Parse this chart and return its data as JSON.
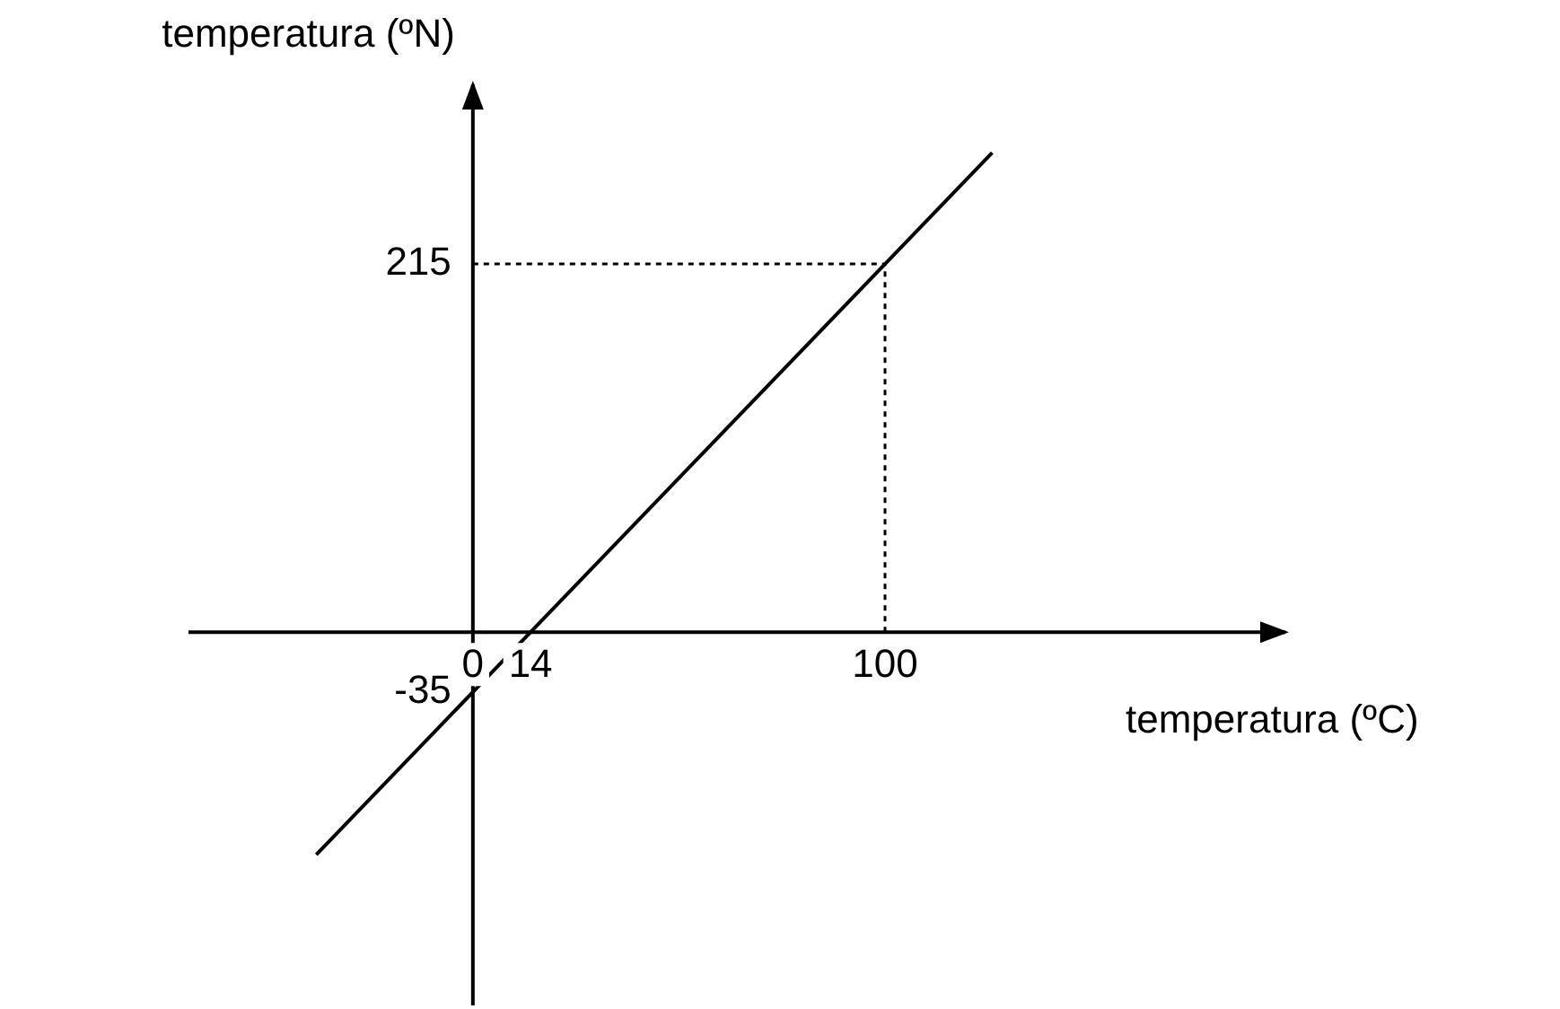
{
  "chart_data": {
    "type": "line",
    "xlabel": "temperatura (ºC)",
    "ylabel": "temperatura (ºN)",
    "xlim": [
      -69,
      198
    ],
    "ylim": [
      -218,
      322
    ],
    "xticks": [
      0,
      14,
      100
    ],
    "yticks": [
      -35,
      215
    ],
    "series": [
      {
        "color": "#000000",
        "x": [
          -38,
          126
        ],
        "values": [
          -130,
          280
        ]
      }
    ],
    "ref_lines": [
      {
        "axis": "x",
        "value": 100,
        "line_style": "dotted",
        "color": "#000000"
      },
      {
        "axis": "y",
        "value": 215,
        "line_style": "dotted",
        "color": "#000000"
      }
    ],
    "grid": false,
    "legend": false,
    "marker": "none",
    "line_style": "solid"
  }
}
